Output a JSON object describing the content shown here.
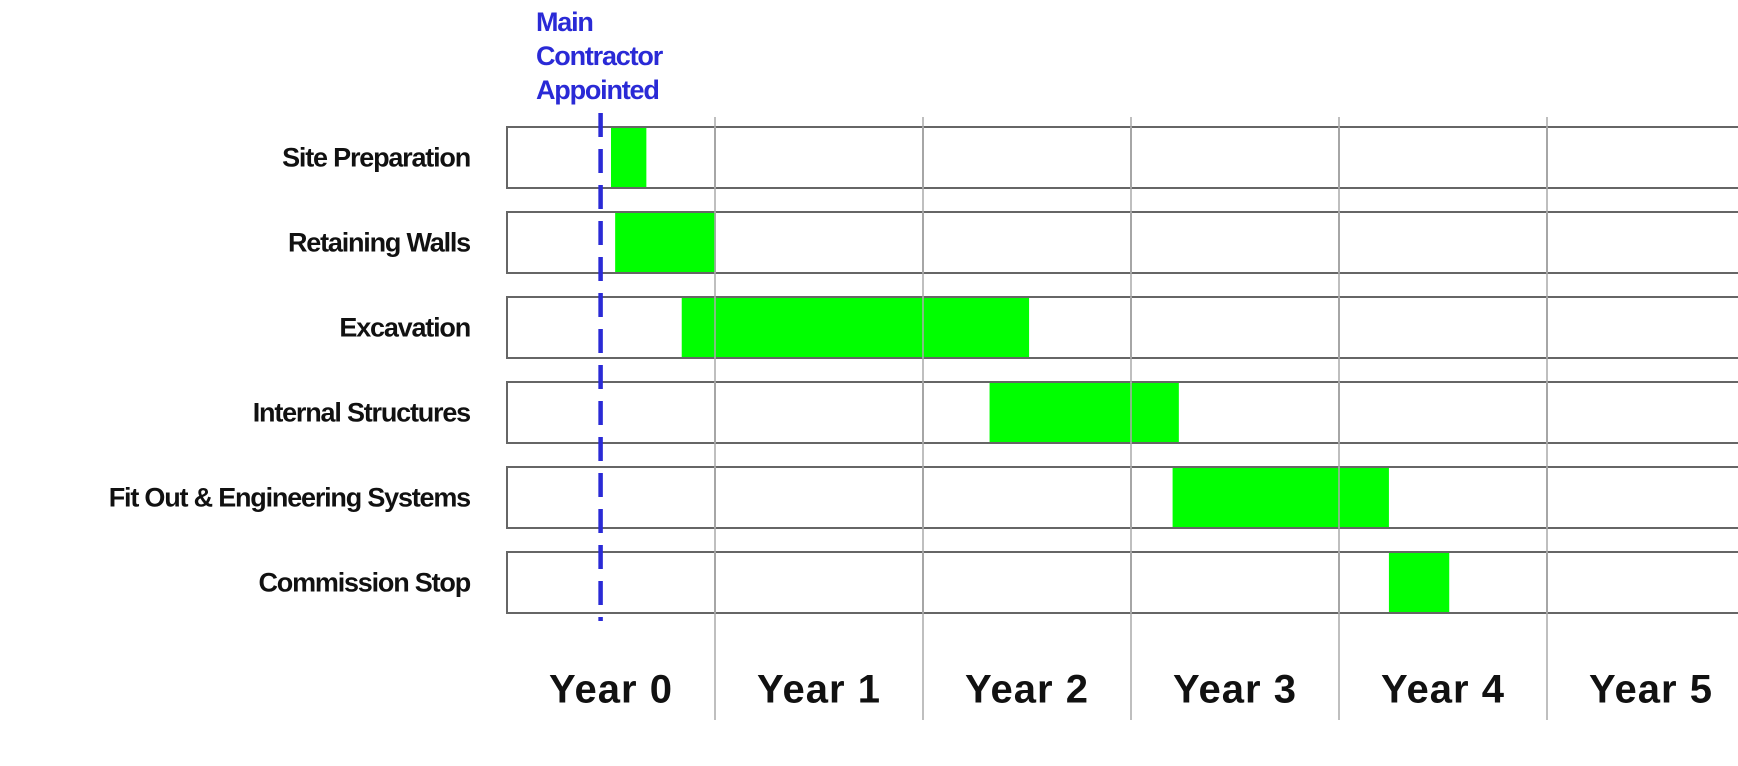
{
  "chart_data": {
    "type": "gantt",
    "categories": [
      "Site Preparation",
      "Retaining Walls",
      "Excavation",
      "Internal Structures",
      "Fit Out  & Engineering Systems",
      "Commission Stop"
    ],
    "start": [
      0.5,
      0.52,
      0.84,
      2.32,
      3.2,
      4.24
    ],
    "end": [
      0.67,
      1.0,
      2.51,
      3.23,
      4.24,
      4.53
    ],
    "color": "#00ff00",
    "periods": [
      "Year 0",
      "Year 1",
      "Year 2",
      "Year 3",
      "Year 4",
      "Year 5"
    ],
    "xlim": [
      0,
      6
    ],
    "marker": {
      "lines": [
        "Main",
        "Contractor",
        "Appointed"
      ],
      "value": 0.45,
      "color": "#2a2ad6"
    }
  }
}
